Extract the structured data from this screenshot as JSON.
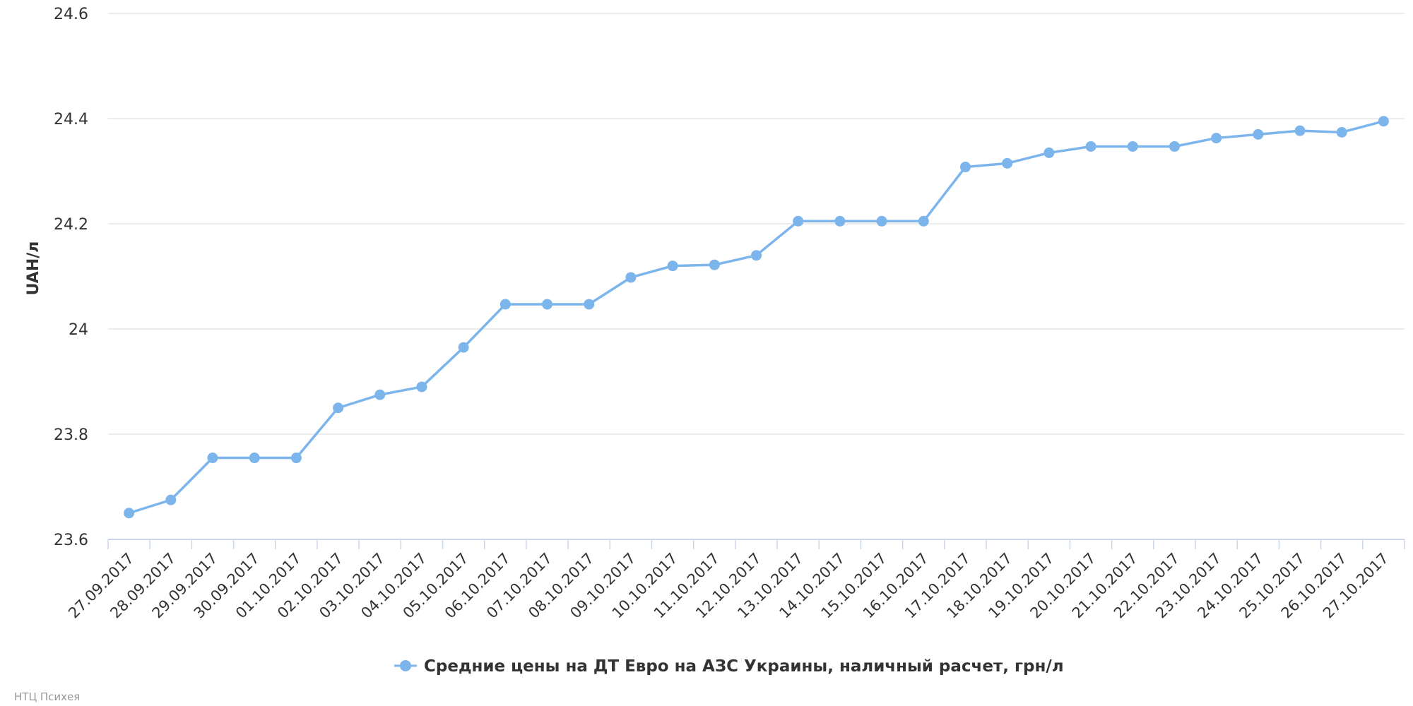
{
  "chart_data": {
    "type": "line",
    "ylabel": "UAH/л",
    "xlabel": "",
    "ylim": [
      23.6,
      24.6
    ],
    "yticks": [
      23.6,
      23.8,
      24,
      24.2,
      24.4,
      24.6
    ],
    "grid": true,
    "legend_position": "bottom-center",
    "categories": [
      "27.09.2017",
      "28.09.2017",
      "29.09.2017",
      "30.09.2017",
      "01.10.2017",
      "02.10.2017",
      "03.10.2017",
      "04.10.2017",
      "05.10.2017",
      "06.10.2017",
      "07.10.2017",
      "08.10.2017",
      "09.10.2017",
      "10.10.2017",
      "11.10.2017",
      "12.10.2017",
      "13.10.2017",
      "14.10.2017",
      "15.10.2017",
      "16.10.2017",
      "17.10.2017",
      "18.10.2017",
      "19.10.2017",
      "20.10.2017",
      "21.10.2017",
      "22.10.2017",
      "23.10.2017",
      "24.10.2017",
      "25.10.2017",
      "26.10.2017",
      "27.10.2017"
    ],
    "series": [
      {
        "name": "Средние цены на ДТ Евро на АЗС Украины, наличный расчет, грн/л",
        "color": "#7cb5ec",
        "values": [
          23.65,
          23.675,
          23.755,
          23.755,
          23.755,
          23.85,
          23.875,
          23.89,
          23.965,
          24.047,
          24.047,
          24.047,
          24.098,
          24.12,
          24.122,
          24.14,
          24.205,
          24.205,
          24.205,
          24.205,
          24.308,
          24.315,
          24.335,
          24.347,
          24.347,
          24.347,
          24.363,
          24.37,
          24.377,
          24.374,
          24.395
        ]
      }
    ]
  },
  "credit": "НТЦ Психея"
}
